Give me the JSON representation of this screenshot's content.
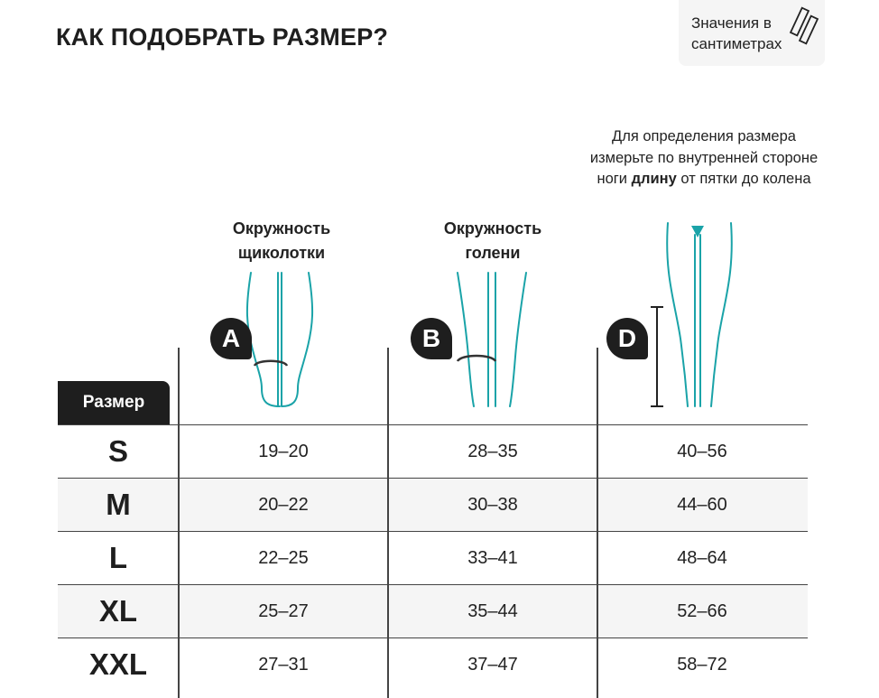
{
  "title": "КАК ПОДОБРАТЬ РАЗМЕР?",
  "units_note": {
    "line1": "Значения в",
    "line2": "сантиметрах",
    "icon": "measuring-tape-icon"
  },
  "measurements": [
    {
      "badge": "A",
      "line1": "Окружность",
      "line2": "щиколотки"
    },
    {
      "badge": "B",
      "line1": "Окружность",
      "line2": "голени"
    },
    {
      "badge": "D",
      "note_pre": "Для определения размера измерьте по внутренней стороне ноги",
      "note_bold": "длину",
      "note_post": "от пятки до колена"
    }
  ],
  "accent_color": "#1aa3a8",
  "table": {
    "size_header": "Размер",
    "rows": [
      {
        "size": "S",
        "a": "19–20",
        "b": "28–35",
        "d": "40–56"
      },
      {
        "size": "M",
        "a": "20–22",
        "b": "30–38",
        "d": "44–60"
      },
      {
        "size": "L",
        "a": "22–25",
        "b": "33–41",
        "d": "48–64"
      },
      {
        "size": "XL",
        "a": "25–27",
        "b": "35–44",
        "d": "52–66"
      },
      {
        "size": "XXL",
        "a": "27–31",
        "b": "37–47",
        "d": "58–72"
      }
    ]
  }
}
